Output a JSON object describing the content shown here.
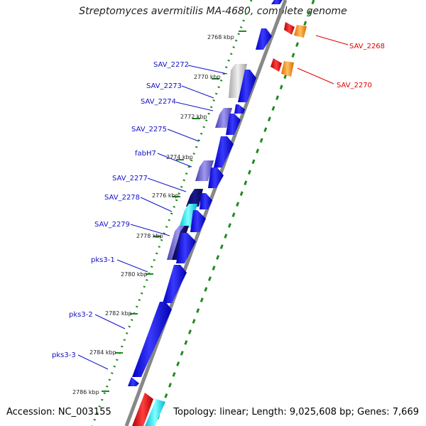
{
  "title": "Streptomyces avermitilis MA-4680, complete genome",
  "footer": {
    "accession": "Accession: NC_003155",
    "summary": "Topology: linear; Length: 9,025,608 bp; Genes: 7,669"
  },
  "ticks": [
    "2768 kbp",
    "2770 kbp",
    "2772 kbp",
    "2774 kbp",
    "2776 kbp",
    "2778 kbp",
    "2780 kbp",
    "2782 kbp",
    "2784 kbp",
    "2786 kbp"
  ],
  "genes_left": [
    "SAV_2272",
    "SAV_2273",
    "SAV_2274",
    "SAV_2275",
    "fabH7",
    "SAV_2277",
    "SAV_2278",
    "SAV_2279",
    "pks3-1",
    "pks3-2",
    "pks3-3"
  ],
  "genes_right": [
    "SAV_2268",
    "SAV_2270"
  ],
  "colors": {
    "blue": "#1010e0",
    "navy": "#0c0c70",
    "cyan": "#18e0f0",
    "gray": "#c8c8c8",
    "slate": "#6a5fd0",
    "red": "#e80000",
    "orange": "#ff9600",
    "label_blue": "#1010c8",
    "label_red": "#e00000",
    "axis": "#888888",
    "tick": "#1f8a1f"
  }
}
